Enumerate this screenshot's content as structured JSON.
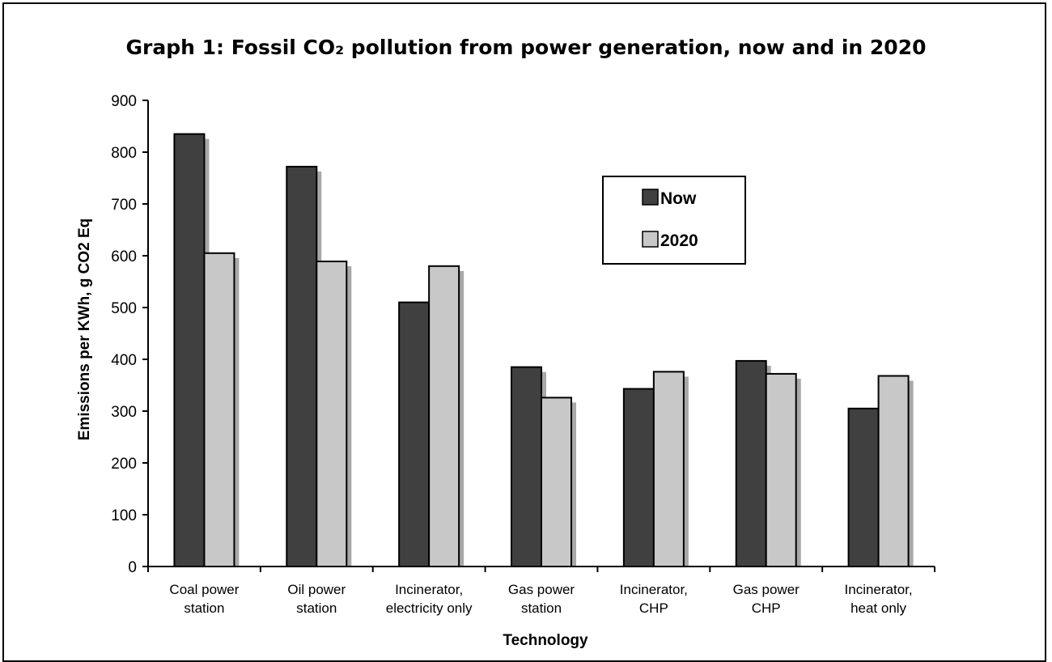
{
  "chart_data": {
    "type": "bar",
    "title": "Graph 1: Fossil CO₂ pollution from power generation, now and in 2020",
    "xlabel": "Technology",
    "ylabel": "Emissions per KWh, g CO2 Eq",
    "ylim": [
      0,
      900
    ],
    "yticks": [
      0,
      100,
      200,
      300,
      400,
      500,
      600,
      700,
      800,
      900
    ],
    "grid": false,
    "legend_position": "upper-right",
    "categories": [
      [
        "Coal power",
        "station"
      ],
      [
        "Oil power",
        "station"
      ],
      [
        "Incinerator,",
        "electricity only"
      ],
      [
        "Gas power",
        "station"
      ],
      [
        "Incinerator,",
        "CHP"
      ],
      [
        "Gas power",
        "CHP"
      ],
      [
        "Incinerator,",
        "heat only"
      ]
    ],
    "series": [
      {
        "name": "Now",
        "color": "#404040",
        "values": [
          835,
          772,
          510,
          385,
          343,
          397,
          305
        ]
      },
      {
        "name": "2020",
        "color": "#c8c8c8",
        "values": [
          605,
          589,
          580,
          326,
          376,
          372,
          368
        ]
      }
    ],
    "shadow_color": "#a8a8a8"
  }
}
